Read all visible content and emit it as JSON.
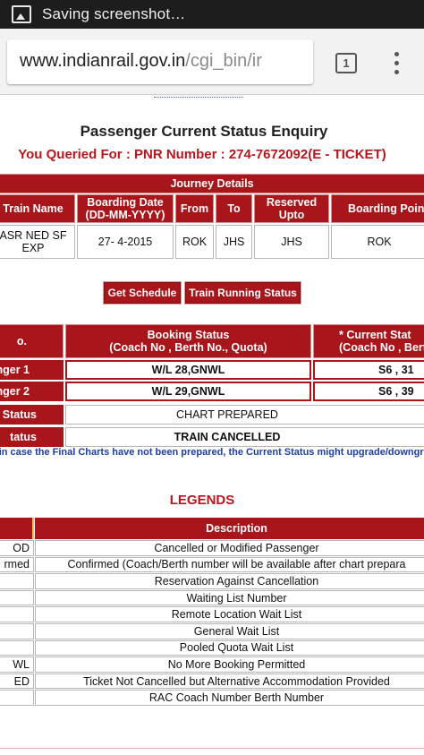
{
  "statusbar": {
    "icon": "screenshot-icon",
    "text": "Saving screenshot…"
  },
  "browser": {
    "url_host": "www.indianrail.gov.in",
    "url_path": "/cgi_bin/ir",
    "tab_count": "1"
  },
  "page": {
    "title": "Passenger Current Status Enquiry",
    "query_line": "You Queried For : PNR Number : 274-7672092(E - TICKET)"
  },
  "journey": {
    "caption": "Journey Details",
    "headers": [
      "Train Name",
      "Boarding Date\n(DD-MM-YYYY)",
      "From",
      "To",
      "Reserved\nUpto",
      "Boarding Point"
    ],
    "row": [
      "ASR NED SF\nEXP",
      "27- 4-2015",
      "ROK",
      "JHS",
      "JHS",
      "ROK"
    ]
  },
  "buttons": {
    "schedule": "Get Schedule",
    "running": "Train Running Status"
  },
  "booking": {
    "col_no": "o.",
    "col_booking": "Booking Status\n(Coach No , Berth No., Quota)",
    "col_current": "* Current Stat\n(Coach No , Berth",
    "passengers": [
      {
        "label": "nger 1",
        "booking": "W/L 28,GNWL",
        "current": "S6 , 31"
      },
      {
        "label": "nger 2",
        "booking": "W/L 29,GNWL",
        "current": "S6 , 39"
      }
    ],
    "chart_label": "Status",
    "chart_value": "CHART PREPARED",
    "train_label": "tatus",
    "train_value": "TRAIN CANCELLED",
    "note": "t in case the Final Charts have not been prepared, the Current Status might upgrade/downgrade a"
  },
  "legends": {
    "title": "LEGENDS",
    "header": "Description",
    "items": [
      {
        "code": "OD",
        "desc": "Cancelled or Modified Passenger"
      },
      {
        "code": "rmed",
        "desc": "Confirmed (Coach/Berth number will be available after chart prepara"
      },
      {
        "code": "",
        "desc": "Reservation Against Cancellation"
      },
      {
        "code": "",
        "desc": "Waiting List Number"
      },
      {
        "code": "",
        "desc": "Remote Location Wait List"
      },
      {
        "code": "",
        "desc": "General Wait List"
      },
      {
        "code": "",
        "desc": "Pooled Quota Wait List"
      },
      {
        "code": "WL",
        "desc": "No More Booking Permitted"
      },
      {
        "code": "ED",
        "desc": "Ticket Not Cancelled but Alternative Accommodation Provided"
      },
      {
        "code": "",
        "desc": "RAC Coach Number Berth Number"
      }
    ]
  },
  "colors": {
    "accent": "#a8151b",
    "title_red": "#b8161c",
    "note_blue": "#1e3ea6"
  }
}
